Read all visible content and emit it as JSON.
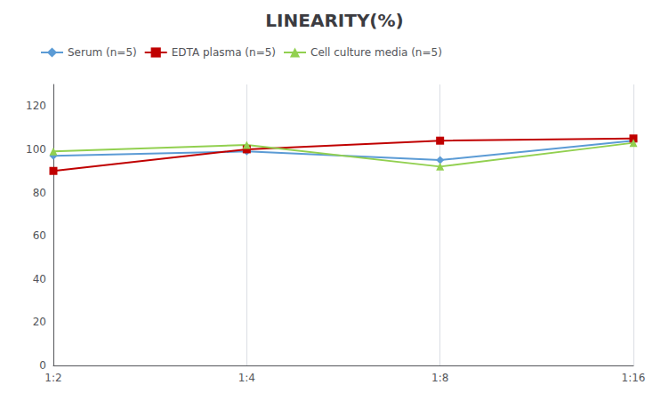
{
  "chart_data": {
    "type": "line",
    "title": "LINEARITY(%)",
    "categories": [
      "1:2",
      "1:4",
      "1:8",
      "1:16"
    ],
    "series": [
      {
        "name": "Serum (n=5)",
        "color": "#5b9bd5",
        "marker": "diamond",
        "values": [
          97,
          99,
          95,
          104
        ]
      },
      {
        "name": "EDTA plasma (n=5)",
        "color": "#c00000",
        "marker": "square",
        "values": [
          90,
          100,
          104,
          105
        ]
      },
      {
        "name": "Cell culture media (n=5)",
        "color": "#92d050",
        "marker": "triangle",
        "values": [
          99,
          102,
          92,
          103
        ]
      }
    ],
    "ylim": [
      0,
      130
    ],
    "yticks": [
      0,
      20,
      40,
      60,
      80,
      100,
      120
    ],
    "grid": "x",
    "legend": "upper left"
  }
}
